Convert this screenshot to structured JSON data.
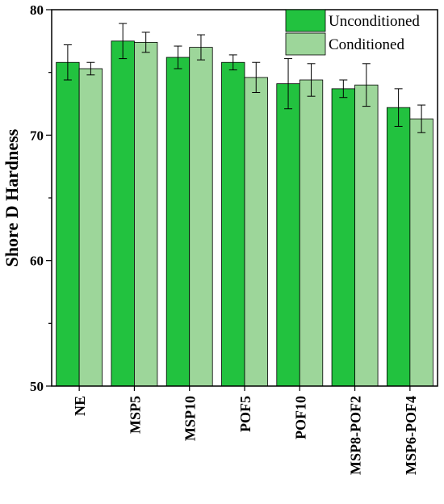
{
  "chart_data": {
    "type": "bar",
    "ylabel": "Shore D Hardness",
    "xlabel": "",
    "ylim": [
      50,
      80
    ],
    "yticks": [
      50,
      60,
      70,
      80
    ],
    "categories": [
      "NE",
      "MSP5",
      "MSP10",
      "POF5",
      "POF10",
      "MSP8-POF2",
      "MSP6-POF4"
    ],
    "series": [
      {
        "name": "Unconditioned",
        "color": "#22c23f",
        "values": [
          75.8,
          77.5,
          76.2,
          75.8,
          74.1,
          73.7,
          72.2
        ],
        "errors": [
          1.4,
          1.4,
          0.9,
          0.6,
          2.0,
          0.7,
          1.5
        ]
      },
      {
        "name": "Conditioned",
        "color": "#9dd69a",
        "values": [
          75.3,
          77.4,
          77.0,
          74.6,
          74.4,
          74.0,
          71.3
        ],
        "errors": [
          0.5,
          0.8,
          1.0,
          1.2,
          1.3,
          1.7,
          1.1
        ]
      }
    ],
    "legend_position": "top-right",
    "grid": false
  }
}
